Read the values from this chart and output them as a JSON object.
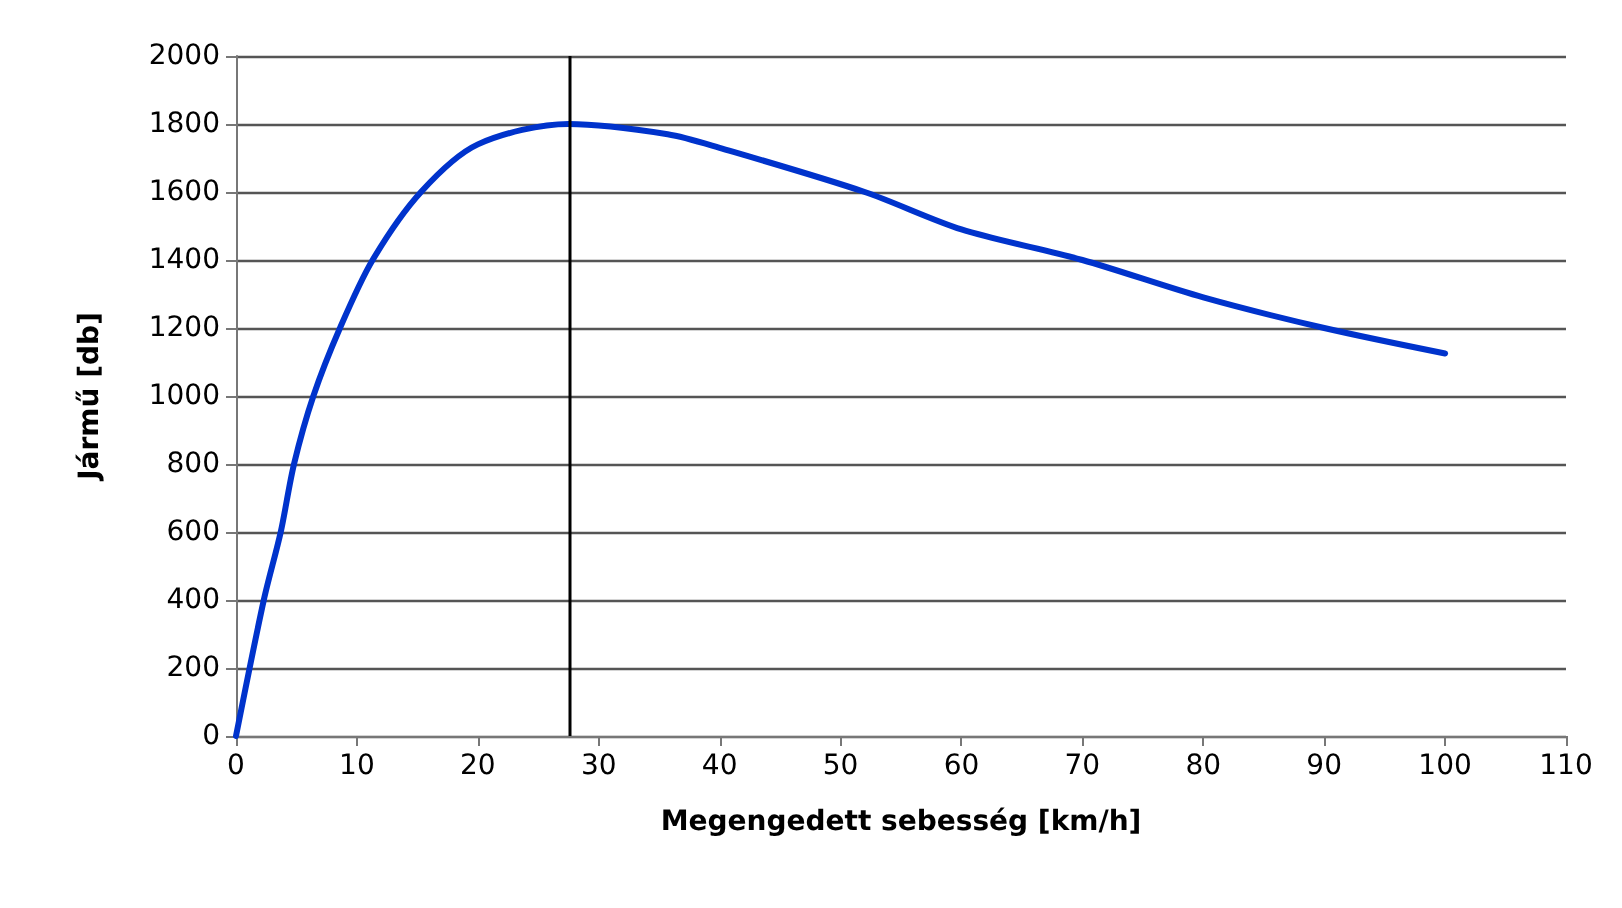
{
  "chart_data": {
    "type": "line",
    "xlabel": "Megengedett sebesség [km/h]",
    "ylabel": "Jármű [db]",
    "x": [
      0,
      2.3,
      3.7,
      4.8,
      6.4,
      8.6,
      11.3,
      15.3,
      20,
      27.5,
      35.7,
      40,
      52,
      60,
      70,
      80,
      90,
      100
    ],
    "series": [
      {
        "color": "#0033cc",
        "values": [
          0,
          400,
          600,
          800,
          1000,
          1200,
          1400,
          1600,
          1740,
          1800,
          1770,
          1730,
          1600,
          1490,
          1400,
          1290,
          1200,
          1125
        ]
      }
    ],
    "xlim": [
      0,
      110
    ],
    "xticks": [
      0,
      10,
      20,
      30,
      40,
      50,
      60,
      70,
      80,
      90,
      100,
      110
    ],
    "ylim": [
      0,
      2000
    ],
    "yticks": [
      0,
      200,
      400,
      600,
      800,
      1000,
      1200,
      1400,
      1600,
      1800,
      2000
    ],
    "ref_lines": [
      {
        "axis": "x",
        "value": 27.5,
        "color": "#000000"
      }
    ],
    "grid": "y",
    "marker": "none",
    "line_style": "solid"
  }
}
